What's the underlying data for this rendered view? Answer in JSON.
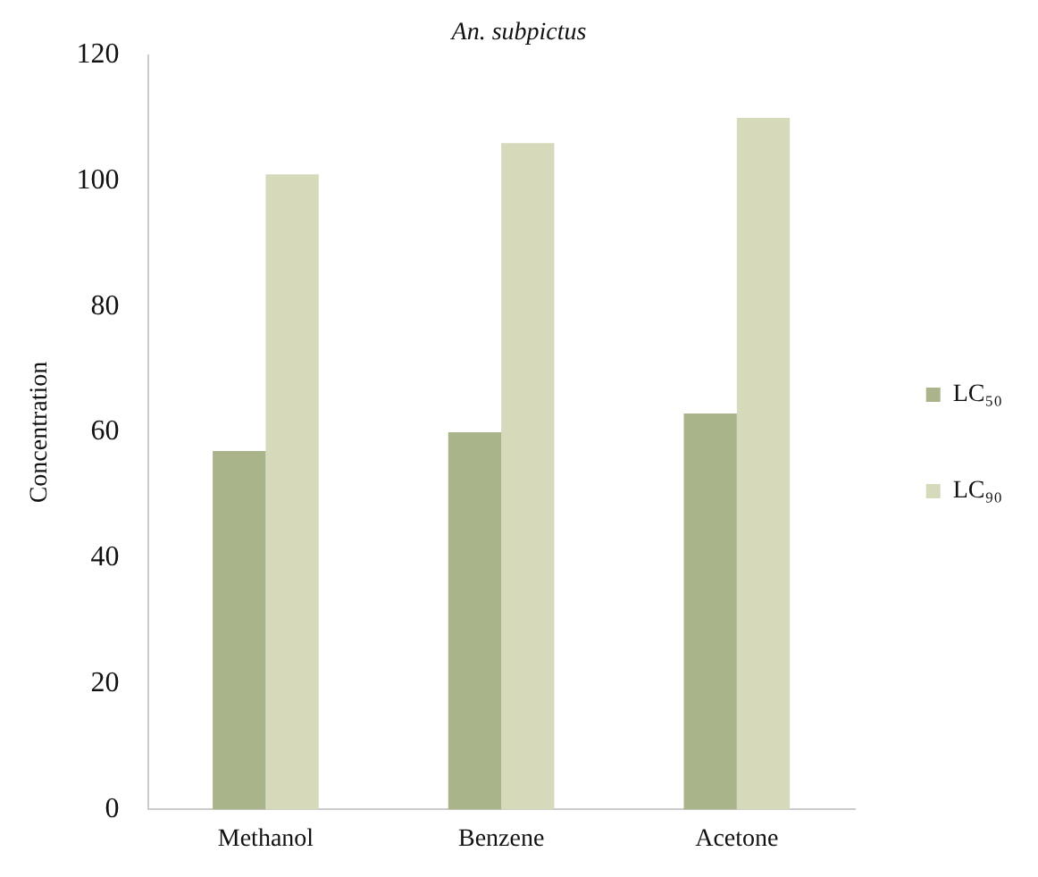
{
  "chart_data": {
    "type": "bar",
    "title": "An. subpictus",
    "ylabel": "Concentration",
    "categories": [
      "Methanol",
      "Benzene",
      "Acetone"
    ],
    "series": [
      {
        "name": "LC₅₀",
        "color": "#a9b48a",
        "values": [
          57,
          60,
          63
        ]
      },
      {
        "name": "LC₉₀",
        "color": "#d6dabb",
        "values": [
          101,
          106,
          110
        ]
      }
    ],
    "ylim": [
      0,
      120
    ],
    "yticks": [
      0,
      20,
      40,
      60,
      80,
      100,
      120
    ],
    "grid": false,
    "legend": "right"
  }
}
